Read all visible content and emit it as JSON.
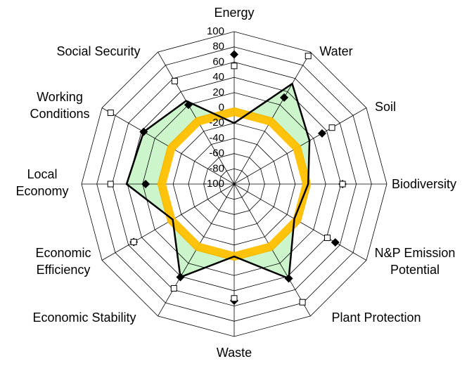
{
  "chart_data": {
    "type": "radar",
    "categories": [
      "Energy",
      "Water",
      "Soil",
      "Biodiversity",
      "N&P Emission Potential",
      "Plant Protection",
      "Waste",
      "Economic Stability",
      "Economic Efficiency",
      "Local Economy",
      "Working Conditions",
      "Social Security"
    ],
    "ylim": [
      -100,
      100
    ],
    "yticks": [
      -100,
      -80,
      -60,
      -40,
      -20,
      0,
      20,
      40,
      60,
      80,
      100
    ],
    "grid": true,
    "series": [
      {
        "style": "band",
        "color": "#ffc000",
        "values": [
          -5,
          -5,
          -5,
          -5,
          -5,
          -5,
          -5,
          -5,
          -5,
          -5,
          -5,
          -5
        ]
      },
      {
        "style": "area",
        "color": "#ccf5cc",
        "line_color": "#000000",
        "values": [
          -20,
          52,
          14,
          -3,
          -9,
          43,
          -5,
          41,
          -7,
          41,
          37,
          26
        ]
      },
      {
        "style": "diamond",
        "color": "#000000",
        "values": [
          70,
          31,
          33,
          42,
          53,
          43,
          53,
          41,
          52,
          16,
          37,
          20
        ]
      },
      {
        "style": "square",
        "color": "#000000",
        "values": [
          55,
          94,
          48,
          42,
          41,
          79,
          50,
          58,
          52,
          62,
          87,
          56
        ]
      }
    ]
  }
}
